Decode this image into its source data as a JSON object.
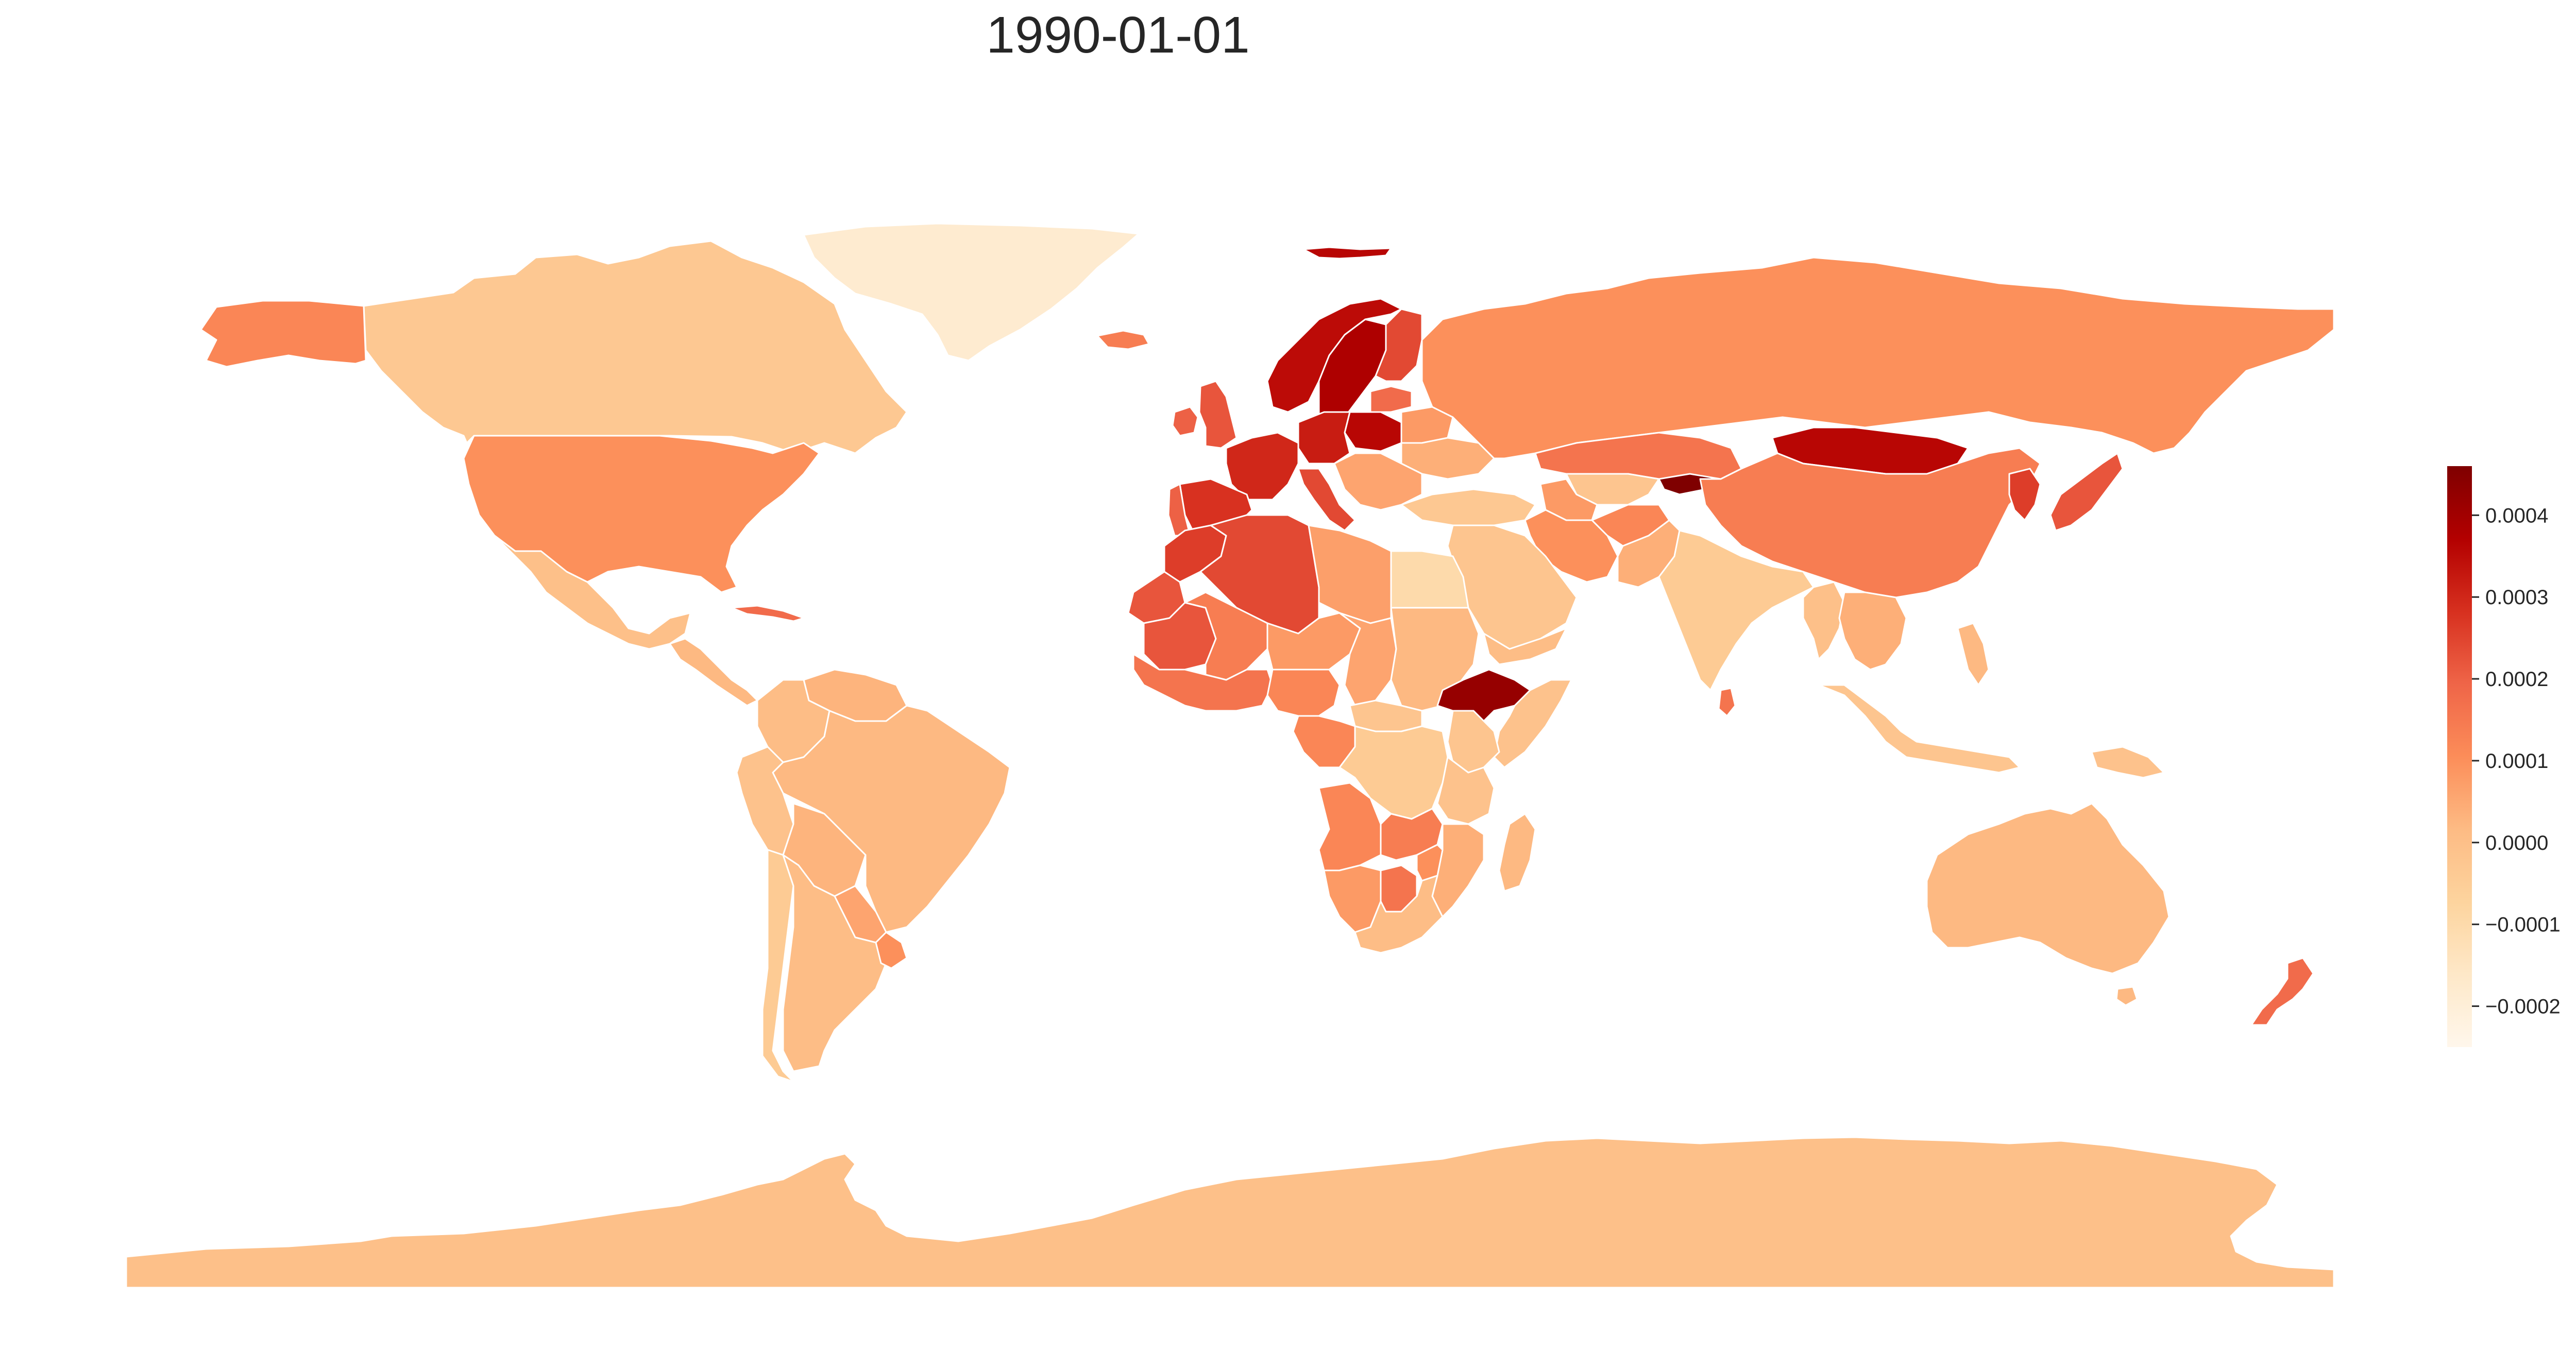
{
  "title": "1990-01-01",
  "map": {
    "type": "choropleth",
    "projection": "equirectangular",
    "colormap": "OrRd",
    "colormap_stops": [
      "#fff7ec",
      "#fee8c8",
      "#fdd49e",
      "#fdbb84",
      "#fc8d59",
      "#ef6548",
      "#d7301f",
      "#b30000",
      "#7f0000"
    ],
    "border_color": "#ffffff"
  },
  "colorbar": {
    "range": [
      -0.00025,
      0.00046
    ],
    "ticks": [
      {
        "value": 0.0004,
        "label": "0.0004"
      },
      {
        "value": 0.0003,
        "label": "0.0003"
      },
      {
        "value": 0.0002,
        "label": "0.0002"
      },
      {
        "value": 0.0001,
        "label": "0.0001"
      },
      {
        "value": 0.0,
        "label": "0.0000"
      },
      {
        "value": -0.0001,
        "label": "−0.0001"
      },
      {
        "value": -0.0002,
        "label": "−0.0002"
      }
    ]
  },
  "chart_data": {
    "type": "heatmap",
    "title": "1990-01-01",
    "value_range": [
      -0.00025,
      0.00046
    ],
    "regions": [
      {
        "name": "Greenland",
        "value": -0.00018
      },
      {
        "name": "Canada",
        "value": -3e-05
      },
      {
        "name": "Alaska",
        "value": 0.00012
      },
      {
        "name": "United States",
        "value": 0.0001
      },
      {
        "name": "Mexico",
        "value": 0.0
      },
      {
        "name": "Central America",
        "value": 2e-05
      },
      {
        "name": "Cuba",
        "value": 0.00018
      },
      {
        "name": "Venezuela",
        "value": 3e-05
      },
      {
        "name": "Colombia",
        "value": 1e-05
      },
      {
        "name": "Brazil",
        "value": 2e-05
      },
      {
        "name": "Peru",
        "value": -1e-05
      },
      {
        "name": "Bolivia",
        "value": 3e-05
      },
      {
        "name": "Paraguay",
        "value": 6e-05
      },
      {
        "name": "Chile",
        "value": -4e-05
      },
      {
        "name": "Argentina",
        "value": 1e-05
      },
      {
        "name": "Uruguay",
        "value": 0.0001
      },
      {
        "name": "Iceland",
        "value": 0.00014
      },
      {
        "name": "Svalbard",
        "value": 0.00036
      },
      {
        "name": "United Kingdom",
        "value": 0.00022
      },
      {
        "name": "Ireland",
        "value": 0.0002
      },
      {
        "name": "Norway",
        "value": 0.00035
      },
      {
        "name": "Sweden",
        "value": 0.00038
      },
      {
        "name": "Finland",
        "value": 0.00024
      },
      {
        "name": "Baltic States",
        "value": 0.00018
      },
      {
        "name": "Poland",
        "value": 0.00036
      },
      {
        "name": "Germany",
        "value": 0.00032
      },
      {
        "name": "France",
        "value": 0.0003
      },
      {
        "name": "Spain",
        "value": 0.00028
      },
      {
        "name": "Portugal",
        "value": 0.0002
      },
      {
        "name": "Italy",
        "value": 0.00024
      },
      {
        "name": "Belarus",
        "value": 8e-05
      },
      {
        "name": "Ukraine",
        "value": 4e-05
      },
      {
        "name": "Balkans",
        "value": 6e-05
      },
      {
        "name": "Turkey",
        "value": -3e-05
      },
      {
        "name": "Russia",
        "value": 0.0001
      },
      {
        "name": "Kazakhstan",
        "value": 0.00016
      },
      {
        "name": "Uzbekistan",
        "value": -2e-05
      },
      {
        "name": "Turkmenistan",
        "value": 8e-05
      },
      {
        "name": "Kyrgyzstan",
        "value": 0.00046
      },
      {
        "name": "Mongolia",
        "value": 0.00036
      },
      {
        "name": "China",
        "value": 0.00014
      },
      {
        "name": "Korea",
        "value": 0.00026
      },
      {
        "name": "Japan",
        "value": 0.00022
      },
      {
        "name": "Iran",
        "value": 0.0001
      },
      {
        "name": "Afghanistan",
        "value": 0.00012
      },
      {
        "name": "Pakistan",
        "value": 4e-05
      },
      {
        "name": "India",
        "value": -4e-05
      },
      {
        "name": "Sri Lanka",
        "value": 0.00016
      },
      {
        "name": "Myanmar",
        "value": 0.0
      },
      {
        "name": "Southeast Asia",
        "value": 4e-05
      },
      {
        "name": "Indonesia",
        "value": -2e-05
      },
      {
        "name": "Philippines",
        "value": 2e-05
      },
      {
        "name": "Papua New Guinea",
        "value": -1e-05
      },
      {
        "name": "Saudi Arabia",
        "value": -2e-05
      },
      {
        "name": "Yemen",
        "value": 1e-05
      },
      {
        "name": "Morocco",
        "value": 0.00026
      },
      {
        "name": "Algeria",
        "value": 0.00024
      },
      {
        "name": "Western Sahara",
        "value": 0.00022
      },
      {
        "name": "Mauritania",
        "value": 0.00022
      },
      {
        "name": "Libya",
        "value": 7e-05
      },
      {
        "name": "Egypt",
        "value": -0.0001
      },
      {
        "name": "Mali",
        "value": 0.00014
      },
      {
        "name": "Niger",
        "value": 8e-05
      },
      {
        "name": "Chad",
        "value": 6e-05
      },
      {
        "name": "Sudan",
        "value": 2e-05
      },
      {
        "name": "West Africa",
        "value": 0.00016
      },
      {
        "name": "Nigeria",
        "value": 0.00012
      },
      {
        "name": "Ethiopia",
        "value": 0.00042
      },
      {
        "name": "Somalia",
        "value": -1e-05
      },
      {
        "name": "Kenya",
        "value": -2e-05
      },
      {
        "name": "Congo DRC",
        "value": -4e-05
      },
      {
        "name": "Central African Republic",
        "value": -2e-05
      },
      {
        "name": "Gabon / Congo",
        "value": 0.00012
      },
      {
        "name": "Angola",
        "value": 0.00012
      },
      {
        "name": "Zambia",
        "value": 0.00014
      },
      {
        "name": "Tanzania",
        "value": -1e-05
      },
      {
        "name": "Mozambique",
        "value": 4e-05
      },
      {
        "name": "Namibia",
        "value": 8e-05
      },
      {
        "name": "Botswana",
        "value": 0.00016
      },
      {
        "name": "Zimbabwe",
        "value": 0.0001
      },
      {
        "name": "South Africa",
        "value": 1e-05
      },
      {
        "name": "Madagascar",
        "value": 2e-05
      },
      {
        "name": "Australia",
        "value": 2e-05
      },
      {
        "name": "New Zealand",
        "value": 0.00018
      },
      {
        "name": "Antarctica",
        "value": 0.0
      }
    ]
  }
}
